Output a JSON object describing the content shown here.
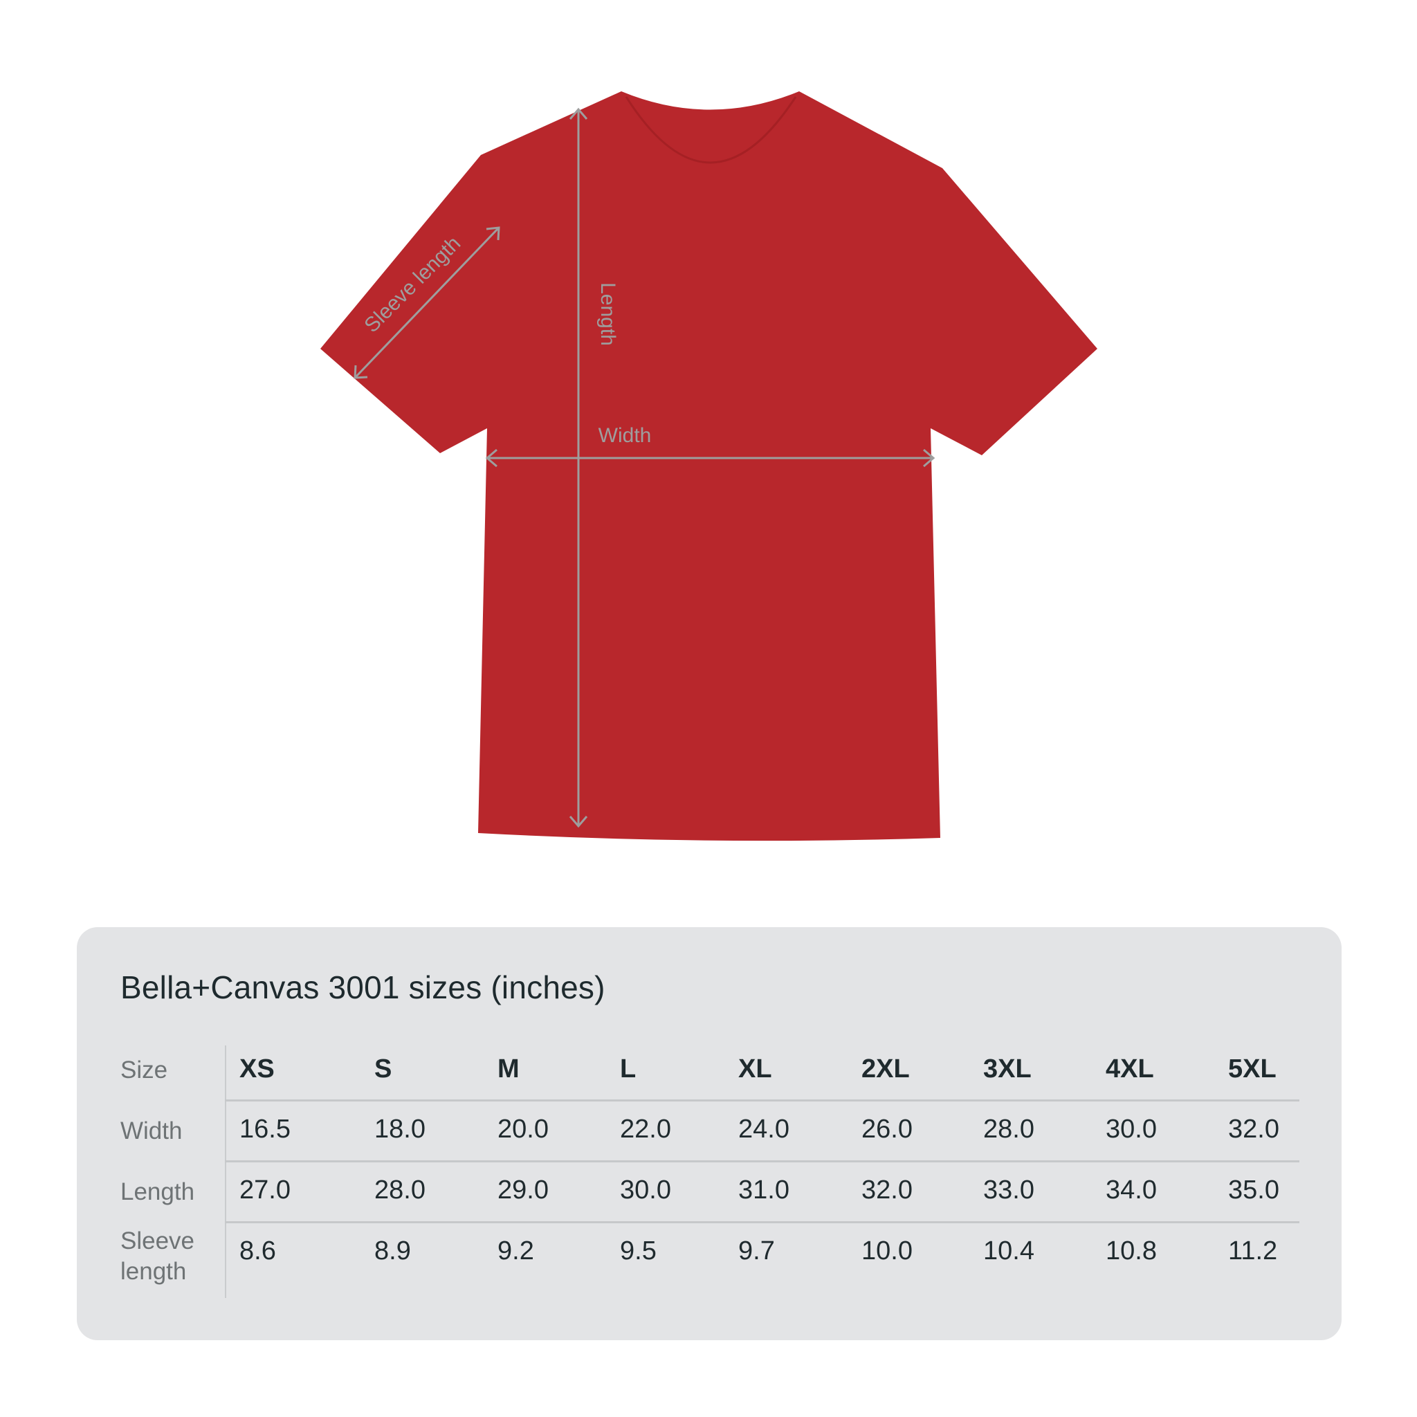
{
  "diagram": {
    "garment_color": "#b8272c",
    "measure_color": "#9e9e9e",
    "labels": {
      "length": "Length",
      "width": "Width",
      "sleeve": "Sleeve length"
    }
  },
  "table": {
    "title": "Bella+Canvas 3001 sizes (inches)",
    "row_labels": {
      "size": "Size",
      "width": "Width",
      "length": "Length",
      "sleeve_1": "Sleeve",
      "sleeve_2": "length"
    },
    "sizes": [
      "XS",
      "S",
      "M",
      "L",
      "XL",
      "2XL",
      "3XL",
      "4XL",
      "5XL"
    ],
    "width": [
      "16.5",
      "18.0",
      "20.0",
      "22.0",
      "24.0",
      "26.0",
      "28.0",
      "30.0",
      "32.0"
    ],
    "length": [
      "27.0",
      "28.0",
      "29.0",
      "30.0",
      "31.0",
      "32.0",
      "33.0",
      "34.0",
      "35.0"
    ],
    "sleeve_length": [
      "8.6",
      "8.9",
      "9.2",
      "9.5",
      "9.7",
      "10.0",
      "10.4",
      "10.8",
      "11.2"
    ]
  }
}
